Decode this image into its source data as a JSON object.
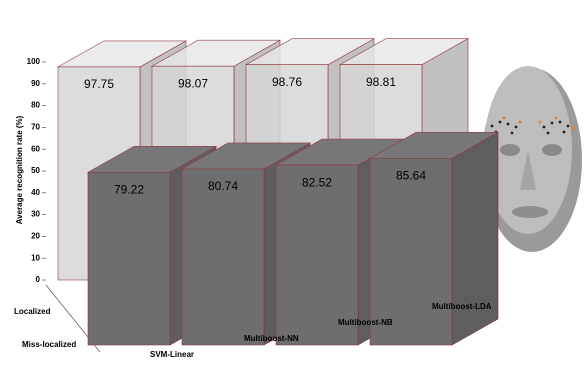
{
  "chart_data": {
    "type": "bar3d",
    "y_label": "Average recognition rate (%)",
    "categories": [
      "SVM-Linear",
      "Multiboost-NN",
      "Multiboost-NB",
      "Multiboost-LDA"
    ],
    "series": [
      {
        "name": "Localized",
        "color": "#d6d6d6",
        "values": [
          97.75,
          98.07,
          98.76,
          98.81
        ]
      },
      {
        "name": "Miss-localized",
        "color": "#6e6e70",
        "values": [
          79.22,
          80.74,
          82.52,
          85.64
        ]
      }
    ],
    "ylim": [
      0,
      100
    ],
    "yticks": [
      0,
      10,
      20,
      30,
      40,
      50,
      60,
      70,
      80,
      90,
      100
    ]
  }
}
